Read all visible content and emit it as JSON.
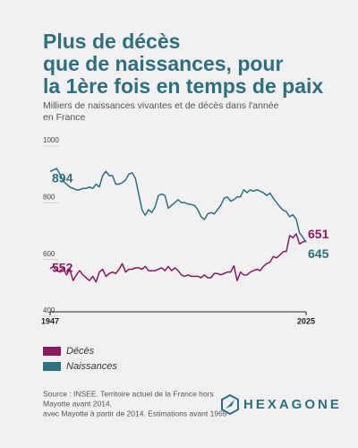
{
  "chart_data": {
    "type": "line",
    "title": [
      "Plus de décès",
      "que de naissances, pour",
      "la 1ère fois en temps de paix"
    ],
    "subtitle": [
      "Milliers de naissances vivantes et de décès dans l'année",
      "en France"
    ],
    "x": [
      1947,
      1948,
      1949,
      1950,
      1951,
      1952,
      1953,
      1954,
      1955,
      1956,
      1957,
      1958,
      1959,
      1960,
      1961,
      1962,
      1963,
      1964,
      1965,
      1966,
      1967,
      1968,
      1969,
      1970,
      1971,
      1972,
      1973,
      1974,
      1975,
      1976,
      1977,
      1978,
      1979,
      1980,
      1981,
      1982,
      1983,
      1984,
      1985,
      1986,
      1987,
      1988,
      1989,
      1990,
      1991,
      1992,
      1993,
      1994,
      1995,
      1996,
      1997,
      1998,
      1999,
      2000,
      2001,
      2002,
      2003,
      2004,
      2005,
      2006,
      2007,
      2008,
      2009,
      2010,
      2011,
      2012,
      2013,
      2014,
      2015,
      2016,
      2017,
      2018,
      2019,
      2020,
      2021,
      2022,
      2023,
      2024,
      2025
    ],
    "series": [
      {
        "name": "Décès",
        "color": "#8b1a5e",
        "values": [
          552,
          560,
          545,
          540,
          555,
          530,
          550,
          510,
          530,
          545,
          530,
          520,
          510,
          525,
          505,
          540,
          550,
          525,
          535,
          540,
          535,
          550,
          570,
          540,
          550,
          550,
          555,
          555,
          550,
          560,
          545,
          545,
          545,
          550,
          555,
          545,
          560,
          545,
          555,
          545,
          530,
          525,
          530,
          525,
          525,
          525,
          520,
          530,
          520,
          520,
          535,
          535,
          530,
          535,
          540,
          540,
          562,
          510,
          540,
          530,
          530,
          540,
          545,
          550,
          545,
          560,
          570,
          575,
          595,
          590,
          600,
          612,
          613,
          669,
          661,
          675,
          639,
          646,
          651
        ]
      },
      {
        "name": "Naissances",
        "color": "#2f6f82",
        "values": [
          894,
          900,
          905,
          885,
          860,
          850,
          840,
          835,
          830,
          830,
          835,
          835,
          840,
          835,
          850,
          840,
          880,
          895,
          880,
          880,
          850,
          850,
          855,
          865,
          885,
          890,
          870,
          815,
          760,
          740,
          760,
          750,
          770,
          810,
          815,
          810,
          765,
          775,
          785,
          795,
          785,
          785,
          780,
          778,
          775,
          760,
          735,
          725,
          745,
          750,
          745,
          760,
          775,
          800,
          805,
          790,
          795,
          805,
          805,
          830,
          820,
          830,
          825,
          830,
          825,
          820,
          810,
          818,
          800,
          785,
          770,
          758,
          753,
          735,
          742,
          726,
          678,
          663,
          645
        ]
      }
    ],
    "xlim": [
      1947,
      2025
    ],
    "xticks": [
      1947,
      2025
    ],
    "ylim": [
      400,
      1000
    ],
    "yticks": [
      400,
      600,
      800,
      1000
    ],
    "source": [
      "Source : INSEE. Territoire actuel de la France hors",
      "Mayotte avant 2014,",
      "avec Mayotte à partir de 2014. Estimations avant 1965"
    ],
    "brand": "HEXAGONE"
  }
}
